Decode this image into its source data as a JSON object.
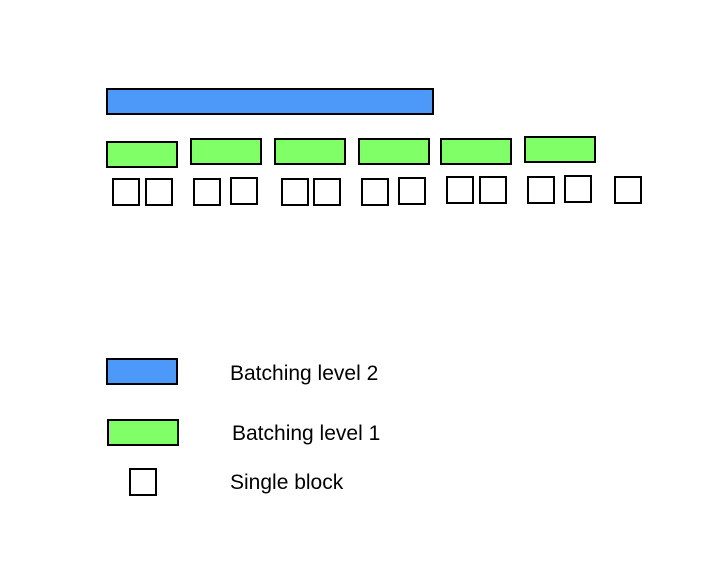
{
  "colors": {
    "level2": "#4d99fa",
    "level1": "#80ff66",
    "block": "#ffffff",
    "border": "#000000"
  },
  "diagram": {
    "level2_batches": 1,
    "level1_batches": 6,
    "single_blocks": 13
  },
  "legend": {
    "level2_label": "Batching level 2",
    "level1_label": "Batching level 1",
    "block_label": "Single block"
  }
}
